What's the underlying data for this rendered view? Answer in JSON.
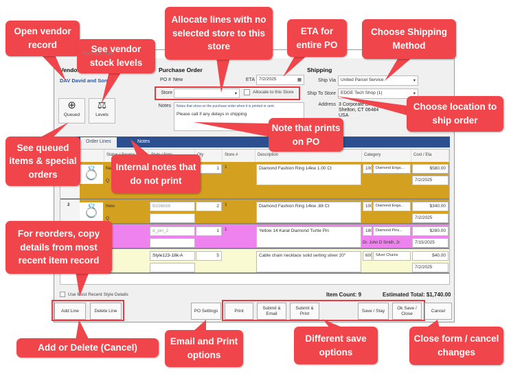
{
  "window": {
    "title": "Purchase Order"
  },
  "vendor": {
    "heading": "Vendor",
    "name": "DAV David and Sons",
    "queued_label": "Queued",
    "levels_label": "Levels"
  },
  "po": {
    "heading": "Purchase Order",
    "po_label": "PO #",
    "po_value": "New",
    "eta_label": "ETA",
    "eta_value": "7/2/2025",
    "store_label": "Store",
    "store_value": "",
    "allocate_label": "Allocate to this Store",
    "notes_label": "Notes",
    "notes_hint": "Notes that show on the purchase order when it is printed or sent.",
    "notes_value": "Please call if any delays in shipping"
  },
  "shipping": {
    "heading": "Shipping",
    "ship_via_label": "Ship Via",
    "ship_via_value": "United Parcel Service",
    "ship_to_label": "Ship To Store",
    "ship_to_value": "EDGE Tech Shop (1)",
    "address_label": "Address",
    "address_lines": [
      "3 Corporate Dr",
      "Shelton, CT  06484",
      "USA"
    ]
  },
  "tabs": [
    "Order Lines",
    "Notes"
  ],
  "grid": {
    "columns": [
      "Status / Source",
      "Style / Note",
      "Qty",
      "Store #",
      "Description",
      "Category",
      "Cost / Eta"
    ],
    "rows": [
      {
        "num": "",
        "color": "#d4a020",
        "status": "New",
        "source": "Q",
        "style": "",
        "note": "",
        "qty": "1",
        "store": "1",
        "description": "Diamond Fashion Ring 14kw 1.00 Ct",
        "cat_code": "100",
        "category": "Diamond Enga...",
        "cost": "$580.00",
        "eta": "7/2/2025",
        "extra": ""
      },
      {
        "num": "2",
        "color": "#d4a020",
        "status": "New",
        "source": "Q",
        "style": "B336658",
        "note": "",
        "qty": "2",
        "store": "1",
        "description": "Diamond Fashion Ring 14kw .88 Ct",
        "cat_code": "100",
        "category": "Diamond Enga...",
        "cost": "$340.00",
        "eta": "7/2/2025",
        "extra": ""
      },
      {
        "num": "",
        "color": "#ee82ee",
        "status": "",
        "source": "",
        "style": "d_pin_2",
        "note": "",
        "qty": "1",
        "store": "1",
        "description": "Yellow 14 Karat Diamond Turtle Pin",
        "cat_code": "180",
        "category": "Diamond Pins...",
        "cost": "$280.00",
        "eta": "7/15/2025",
        "extra": "Dr. John D Smith, Jr."
      },
      {
        "num": "",
        "color": "#fafad2",
        "status": "",
        "source": "",
        "style": "Style123-18k-A",
        "note": "",
        "qty": "5",
        "store": "",
        "description": "Cable chain necklace solid serling silver 20\"",
        "cat_code": "600",
        "category": "Silver Chains",
        "cost": "$40.00",
        "eta": "7/2/2025",
        "extra": ""
      }
    ]
  },
  "footer": {
    "use_recent_label": "Use Most Recent Style Details",
    "item_count_label": "Item Count:",
    "item_count": "9",
    "total_label": "Estimated Total:",
    "total": "$1,740.00"
  },
  "buttons": {
    "add_line": "Add Line",
    "delete_line": "Delete Line",
    "po_settings": "PO Settings",
    "print": "Print",
    "submit_email": "Submit & Email",
    "submit_print": "Submit & Print",
    "save_stay": "Save / Stay",
    "ok_save_close": "Ok Save / Close",
    "cancel": "Cancel"
  },
  "callouts": {
    "open_vendor": "Open vendor record",
    "stock_levels": "See vendor stock levels",
    "allocate": "Allocate lines with no selected store to this store",
    "eta": "ETA for entire PO",
    "shipping_method": "Choose Shipping Method",
    "ship_location": "Choose location to ship order",
    "po_note": "Note that prints on PO",
    "queued": "See queued items & special orders",
    "internal_notes": "Internal notes that do not print",
    "reorders": "For reorders, copy details from most recent item record",
    "add_delete": "Add or Delete (Cancel)",
    "email_print": "Email and Print options",
    "save_options": "Different save options",
    "close_form": "Close form / cancel changes"
  },
  "colors": {
    "callout": "#f0454a",
    "tabbar": "#2b4f8f",
    "row_gold": "#d4a020",
    "row_pink": "#ee82ee",
    "row_yellow": "#fafad2"
  }
}
